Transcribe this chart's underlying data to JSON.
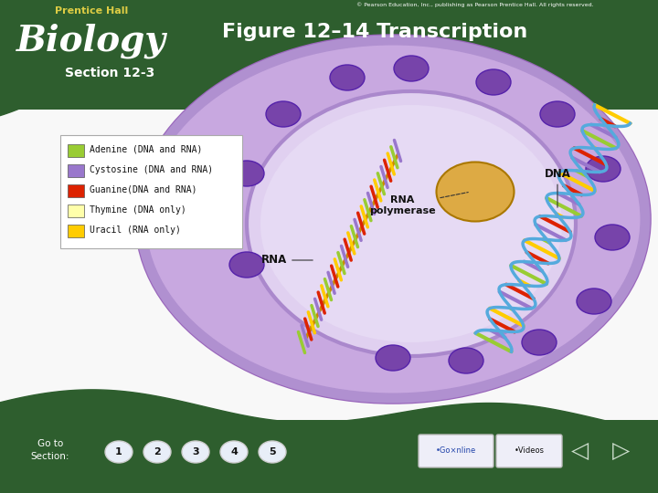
{
  "title": "Figure 12–14 Transcription",
  "section": "Section 12-3",
  "copyright": "© Pearson Education, Inc., publishing as Pearson Prentice Hall. All rights reserved.",
  "legend_items": [
    {
      "label": "Adenine (DNA and RNA)",
      "color": "#99cc33"
    },
    {
      "label": "Cystosine (DNA and RNA)",
      "color": "#9977cc"
    },
    {
      "label": "Guanine(DNA and RNA)",
      "color": "#dd2200"
    },
    {
      "label": "Thymine (DNA only)",
      "color": "#ffffaa"
    },
    {
      "label": "Uracil (RNA only)",
      "color": "#ffcc00"
    }
  ],
  "banner_color": "#2e5e2e",
  "banner_dark": "#1e421e",
  "main_bg": "#ffffff",
  "cell_outer": "#c8a8e0",
  "cell_mid": "#b898d8",
  "cell_inner": "#ddd0ee",
  "pore_color": "#8855bb",
  "rna_pol_color": "#ddaa44",
  "helix_colors": [
    "#99cc33",
    "#9977cc",
    "#dd2200",
    "#ffcc00"
  ],
  "helix_strand_color": "#55aadd",
  "rna_strand_color": "#dd8833",
  "label_font": 8,
  "footer_sections": [
    "1",
    "2",
    "3",
    "4",
    "5"
  ],
  "footer_btn_color": "#ddddee"
}
